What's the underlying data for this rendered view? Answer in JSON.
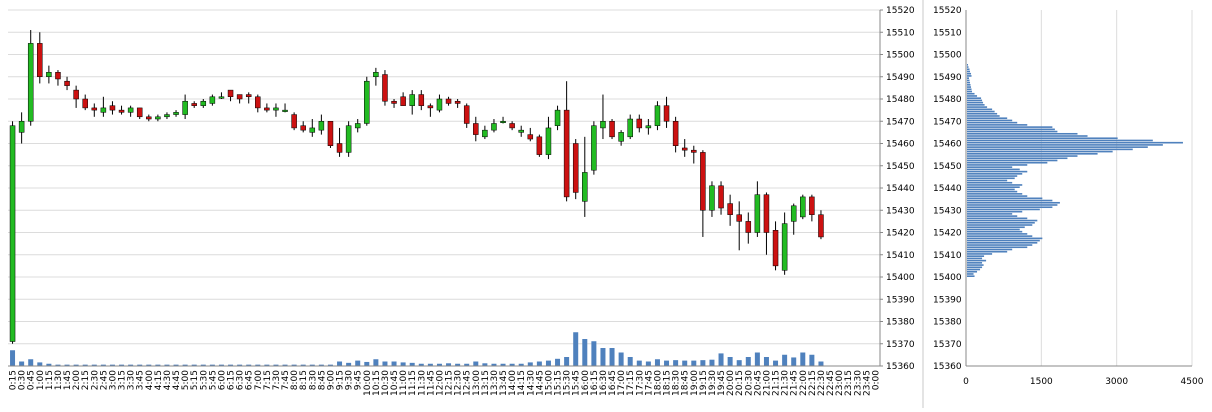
{
  "chart_data": [
    {
      "type": "candlestick",
      "ylim": [
        15360,
        15520
      ],
      "y_ticks": [
        15360,
        15370,
        15380,
        15390,
        15400,
        15410,
        15420,
        15430,
        15440,
        15450,
        15460,
        15470,
        15480,
        15490,
        15500,
        15510,
        15520
      ],
      "x_ticks": [
        "0:15",
        "0:30",
        "0:45",
        "1:00",
        "1:15",
        "1:30",
        "1:45",
        "2:00",
        "2:15",
        "2:30",
        "2:45",
        "3:00",
        "3:15",
        "3:30",
        "3:45",
        "4:00",
        "4:15",
        "4:30",
        "4:45",
        "5:00",
        "5:15",
        "5:30",
        "5:45",
        "6:00",
        "6:15",
        "6:30",
        "6:45",
        "7:00",
        "7:15",
        "7:30",
        "7:45",
        "8:00",
        "8:15",
        "8:30",
        "8:45",
        "9:00",
        "9:15",
        "9:30",
        "9:45",
        "10:00",
        "10:15",
        "10:30",
        "10:45",
        "11:00",
        "11:15",
        "11:30",
        "11:45",
        "12:00",
        "12:15",
        "12:30",
        "12:45",
        "13:00",
        "13:15",
        "13:30",
        "13:45",
        "14:00",
        "14:15",
        "14:30",
        "14:45",
        "15:00",
        "15:15",
        "15:30",
        "15:45",
        "16:00",
        "16:15",
        "16:30",
        "16:45",
        "17:00",
        "17:15",
        "17:30",
        "17:45",
        "18:00",
        "18:15",
        "18:30",
        "18:45",
        "19:00",
        "19:15",
        "19:30",
        "19:45",
        "20:00",
        "20:15",
        "20:30",
        "20:45",
        "21:00",
        "21:15",
        "21:30",
        "21:45",
        "22:00",
        "22:15",
        "22:30",
        "22:45",
        "23:00",
        "23:15",
        "23:30",
        "23:45",
        "0:00"
      ],
      "up_color": "#22bb22",
      "down_color": "#cc1111",
      "volume_color": "#4f81bd",
      "grid": true,
      "candles": [
        {
          "o": 15371,
          "h": 15470,
          "l": 15370,
          "c": 15468
        },
        {
          "o": 15465,
          "h": 15474,
          "l": 15460,
          "c": 15470
        },
        {
          "o": 15470,
          "h": 15511,
          "l": 15468,
          "c": 15505
        },
        {
          "o": 15505,
          "h": 15510,
          "l": 15487,
          "c": 15490
        },
        {
          "o": 15490,
          "h": 15495,
          "l": 15487,
          "c": 15492
        },
        {
          "o": 15492,
          "h": 15493,
          "l": 15486,
          "c": 15489
        },
        {
          "o": 15488,
          "h": 15490,
          "l": 15484,
          "c": 15486
        },
        {
          "o": 15484,
          "h": 15486,
          "l": 15476,
          "c": 15480
        },
        {
          "o": 15480,
          "h": 15482,
          "l": 15475,
          "c": 15476
        },
        {
          "o": 15476,
          "h": 15478,
          "l": 15472,
          "c": 15475
        },
        {
          "o": 15474,
          "h": 15481,
          "l": 15472,
          "c": 15476
        },
        {
          "o": 15477,
          "h": 15479,
          "l": 15473,
          "c": 15475
        },
        {
          "o": 15475,
          "h": 15477,
          "l": 15473,
          "c": 15474
        },
        {
          "o": 15474,
          "h": 15477,
          "l": 15472,
          "c": 15476
        },
        {
          "o": 15476,
          "h": 15476,
          "l": 15471,
          "c": 15472
        },
        {
          "o": 15472,
          "h": 15473,
          "l": 15470,
          "c": 15471
        },
        {
          "o": 15471,
          "h": 15473,
          "l": 15470,
          "c": 15472
        },
        {
          "o": 15472,
          "h": 15474,
          "l": 15471,
          "c": 15473
        },
        {
          "o": 15473,
          "h": 15475,
          "l": 15472,
          "c": 15474
        },
        {
          "o": 15473,
          "h": 15482,
          "l": 15471,
          "c": 15479
        },
        {
          "o": 15478,
          "h": 15479,
          "l": 15476,
          "c": 15477
        },
        {
          "o": 15477,
          "h": 15480,
          "l": 15476,
          "c": 15479
        },
        {
          "o": 15478,
          "h": 15482,
          "l": 15477,
          "c": 15481
        },
        {
          "o": 15481,
          "h": 15483,
          "l": 15480,
          "c": 15481
        },
        {
          "o": 15484,
          "h": 15484,
          "l": 15479,
          "c": 15481
        },
        {
          "o": 15482,
          "h": 15482,
          "l": 15478,
          "c": 15480
        },
        {
          "o": 15482,
          "h": 15483,
          "l": 15478,
          "c": 15481
        },
        {
          "o": 15481,
          "h": 15482,
          "l": 15474,
          "c": 15476
        },
        {
          "o": 15476,
          "h": 15478,
          "l": 15474,
          "c": 15475
        },
        {
          "o": 15475,
          "h": 15478,
          "l": 15472,
          "c": 15476
        },
        {
          "o": 15475,
          "h": 15478,
          "l": 15474,
          "c": 15475
        },
        {
          "o": 15473,
          "h": 15474,
          "l": 15466,
          "c": 15467
        },
        {
          "o": 15468,
          "h": 15470,
          "l": 15465,
          "c": 15466
        },
        {
          "o": 15465,
          "h": 15471,
          "l": 15463,
          "c": 15467
        },
        {
          "o": 15466,
          "h": 15473,
          "l": 15464,
          "c": 15470
        },
        {
          "o": 15470,
          "h": 15470,
          "l": 15458,
          "c": 15459
        },
        {
          "o": 15460,
          "h": 15467,
          "l": 15454,
          "c": 15456
        },
        {
          "o": 15456,
          "h": 15470,
          "l": 15454,
          "c": 15468
        },
        {
          "o": 15467,
          "h": 15471,
          "l": 15465,
          "c": 15469
        },
        {
          "o": 15469,
          "h": 15490,
          "l": 15468,
          "c": 15488
        },
        {
          "o": 15490,
          "h": 15494,
          "l": 15486,
          "c": 15492
        },
        {
          "o": 15491,
          "h": 15493,
          "l": 15477,
          "c": 15479
        },
        {
          "o": 15479,
          "h": 15480,
          "l": 15476,
          "c": 15478
        },
        {
          "o": 15481,
          "h": 15483,
          "l": 15477,
          "c": 15477
        },
        {
          "o": 15477,
          "h": 15484,
          "l": 15473,
          "c": 15482
        },
        {
          "o": 15482,
          "h": 15484,
          "l": 15475,
          "c": 15477
        },
        {
          "o": 15477,
          "h": 15478,
          "l": 15472,
          "c": 15476
        },
        {
          "o": 15475,
          "h": 15482,
          "l": 15474,
          "c": 15480
        },
        {
          "o": 15480,
          "h": 15481,
          "l": 15477,
          "c": 15478
        },
        {
          "o": 15479,
          "h": 15480,
          "l": 15476,
          "c": 15478
        },
        {
          "o": 15477,
          "h": 15478,
          "l": 15467,
          "c": 15469
        },
        {
          "o": 15469,
          "h": 15472,
          "l": 15461,
          "c": 15464
        },
        {
          "o": 15463,
          "h": 15468,
          "l": 15462,
          "c": 15466
        },
        {
          "o": 15466,
          "h": 15471,
          "l": 15465,
          "c": 15469
        },
        {
          "o": 15470,
          "h": 15472,
          "l": 15469,
          "c": 15470
        },
        {
          "o": 15469,
          "h": 15470,
          "l": 15466,
          "c": 15467
        },
        {
          "o": 15465,
          "h": 15468,
          "l": 15463,
          "c": 15466
        },
        {
          "o": 15464,
          "h": 15467,
          "l": 15461,
          "c": 15462
        },
        {
          "o": 15463,
          "h": 15464,
          "l": 15454,
          "c": 15455
        },
        {
          "o": 15455,
          "h": 15472,
          "l": 15453,
          "c": 15467
        },
        {
          "o": 15468,
          "h": 15477,
          "l": 15466,
          "c": 15475
        },
        {
          "o": 15475,
          "h": 15488,
          "l": 15434,
          "c": 15436
        },
        {
          "o": 15460,
          "h": 15462,
          "l": 15435,
          "c": 15438
        },
        {
          "o": 15434,
          "h": 15463,
          "l": 15427,
          "c": 15447
        },
        {
          "o": 15448,
          "h": 15470,
          "l": 15446,
          "c": 15468
        },
        {
          "o": 15467,
          "h": 15482,
          "l": 15462,
          "c": 15470
        },
        {
          "o": 15470,
          "h": 15471,
          "l": 15462,
          "c": 15463
        },
        {
          "o": 15461,
          "h": 15466,
          "l": 15459,
          "c": 15465
        },
        {
          "o": 15463,
          "h": 15473,
          "l": 15462,
          "c": 15471
        },
        {
          "o": 15471,
          "h": 15473,
          "l": 15465,
          "c": 15467
        },
        {
          "o": 15467,
          "h": 15471,
          "l": 15464,
          "c": 15468
        },
        {
          "o": 15468,
          "h": 15479,
          "l": 15466,
          "c": 15477
        },
        {
          "o": 15477,
          "h": 15481,
          "l": 15467,
          "c": 15470
        },
        {
          "o": 15470,
          "h": 15472,
          "l": 15456,
          "c": 15459
        },
        {
          "o": 15458,
          "h": 15462,
          "l": 15454,
          "c": 15457
        },
        {
          "o": 15457,
          "h": 15459,
          "l": 15451,
          "c": 15456
        },
        {
          "o": 15456,
          "h": 15457,
          "l": 15418,
          "c": 15430
        },
        {
          "o": 15430,
          "h": 15443,
          "l": 15427,
          "c": 15441
        },
        {
          "o": 15441,
          "h": 15443,
          "l": 15428,
          "c": 15431
        },
        {
          "o": 15433,
          "h": 15437,
          "l": 15423,
          "c": 15428
        },
        {
          "o": 15428,
          "h": 15434,
          "l": 15412,
          "c": 15425
        },
        {
          "o": 15425,
          "h": 15429,
          "l": 15415,
          "c": 15420
        },
        {
          "o": 15420,
          "h": 15443,
          "l": 15418,
          "c": 15437
        },
        {
          "o": 15437,
          "h": 15438,
          "l": 15410,
          "c": 15420
        },
        {
          "o": 15421,
          "h": 15425,
          "l": 15403,
          "c": 15405
        },
        {
          "o": 15403,
          "h": 15429,
          "l": 15401,
          "c": 15424
        },
        {
          "o": 15425,
          "h": 15433,
          "l": 15419,
          "c": 15432
        },
        {
          "o": 15427,
          "h": 15437,
          "l": 15426,
          "c": 15436
        },
        {
          "o": 15436,
          "h": 15437,
          "l": 15425,
          "c": 15428
        },
        {
          "o": 15428,
          "h": 15430,
          "l": 15417,
          "c": 15418
        }
      ],
      "volume": [
        3.5,
        1,
        1.5,
        0.8,
        0.5,
        0.3,
        0.3,
        0.3,
        0.3,
        0.3,
        0.3,
        0.3,
        0.3,
        0.3,
        0.3,
        0.3,
        0.3,
        0.3,
        0.3,
        0.3,
        0.3,
        0.3,
        0.3,
        0.3,
        0.3,
        0.3,
        0.3,
        0.3,
        0.3,
        0.3,
        0.3,
        0.3,
        0.3,
        0.3,
        0.3,
        0.3,
        1,
        0.7,
        1.2,
        0.9,
        1.5,
        1,
        1,
        0.8,
        0.7,
        0.5,
        0.5,
        0.5,
        0.6,
        0.5,
        0.5,
        1,
        0.6,
        0.5,
        0.5,
        0.5,
        0.5,
        0.8,
        1,
        1.2,
        1.6,
        2,
        7.5,
        6,
        5.5,
        4,
        4,
        3,
        2,
        1.2,
        1,
        1.5,
        1.2,
        1.3,
        1.2,
        1.2,
        1.3,
        1.4,
        2.8,
        2,
        1.3,
        2,
        3,
        2,
        1.2,
        2.5,
        1.9,
        3,
        2.5,
        1
      ]
    },
    {
      "type": "bar",
      "orientation": "horizontal",
      "xlim": [
        0,
        4500
      ],
      "x_ticks": [
        "0",
        "1500",
        "3000",
        "4500"
      ],
      "ylim": [
        15360,
        15520
      ],
      "y_ticks": [
        15360,
        15370,
        15380,
        15390,
        15400,
        15410,
        15420,
        15430,
        15440,
        15450,
        15460,
        15470,
        15480,
        15490,
        15500,
        15510,
        15520
      ],
      "bar_color": "#4f81bd",
      "grid": true,
      "price_levels_start": 15400,
      "price_levels_step": 1,
      "values": [
        150,
        130,
        200,
        260,
        300,
        330,
        300,
        380,
        300,
        340,
        500,
        800,
        900,
        1200,
        1300,
        1400,
        1450,
        1500,
        1300,
        1200,
        1100,
        1050,
        1150,
        1300,
        1350,
        1400,
        1200,
        1000,
        900,
        1100,
        1450,
        1700,
        1800,
        1850,
        1700,
        1500,
        1200,
        1100,
        1000,
        950,
        1050,
        1100,
        900,
        800,
        950,
        1000,
        1100,
        1200,
        1050,
        900,
        1200,
        1600,
        1800,
        2000,
        2200,
        2600,
        2900,
        3300,
        3600,
        3900,
        4300,
        3700,
        3000,
        2400,
        2200,
        1800,
        1750,
        1700,
        1200,
        1000,
        900,
        800,
        650,
        600,
        550,
        500,
        400,
        350,
        320,
        300,
        280,
        200,
        150,
        100,
        90,
        80,
        70,
        60,
        50,
        40,
        90,
        80,
        60,
        50,
        30,
        20
      ]
    }
  ]
}
